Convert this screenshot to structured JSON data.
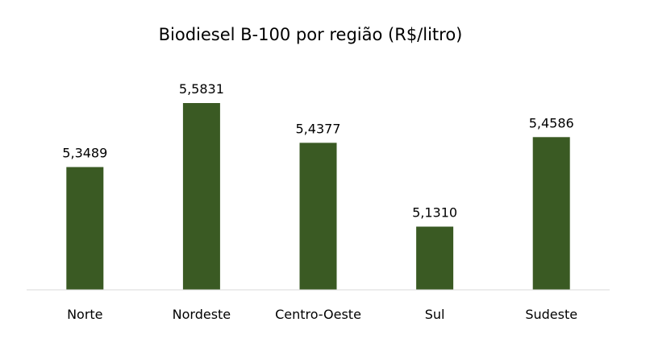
{
  "chart_data": {
    "type": "bar",
    "title": "Biodiesel B-100 por região (R$/litro)",
    "categories": [
      "Norte",
      "Nordeste",
      "Centro-Oeste",
      "Sul",
      "Sudeste"
    ],
    "values": [
      5.3489,
      5.5831,
      5.4377,
      5.131,
      5.4586
    ],
    "data_labels": [
      "5,3489",
      "5,5831",
      "5,4377",
      "5,1310",
      "5,4586"
    ],
    "xlabel": "",
    "ylabel": "",
    "ylim": [
      4.9,
      5.6
    ],
    "grid": false,
    "legend": "none",
    "bar_color": "#3a5a23",
    "axis_color": "#d9d9d9"
  }
}
